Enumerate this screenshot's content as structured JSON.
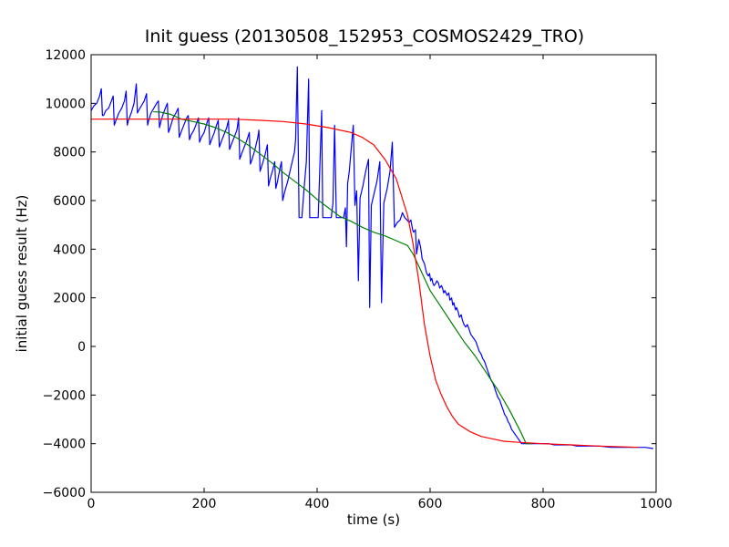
{
  "chart_data": {
    "type": "line",
    "title": "Init guess (20130508_152953_COSMOS2429_TRO)",
    "xlabel": "time (s)",
    "ylabel": "initial guess result (Hz)",
    "xlim": [
      0,
      1000
    ],
    "ylim": [
      -6000,
      12000
    ],
    "xticks": [
      0,
      200,
      400,
      600,
      800,
      1000
    ],
    "yticks": [
      -6000,
      -4000,
      -2000,
      0,
      2000,
      4000,
      6000,
      8000,
      10000,
      12000
    ],
    "grid": false,
    "legend": "none",
    "series": [
      {
        "color": "#0000ff",
        "points": [
          [
            0,
            9700
          ],
          [
            5,
            9900
          ],
          [
            10,
            10000
          ],
          [
            15,
            10300
          ],
          [
            18,
            10600
          ],
          [
            20,
            9500
          ],
          [
            22,
            9500
          ],
          [
            26,
            9700
          ],
          [
            31,
            9800
          ],
          [
            36,
            10100
          ],
          [
            39,
            10300
          ],
          [
            41,
            9100
          ],
          [
            44,
            9300
          ],
          [
            49,
            9600
          ],
          [
            54,
            9800
          ],
          [
            59,
            10100
          ],
          [
            62,
            10500
          ],
          [
            64,
            9100
          ],
          [
            66,
            9300
          ],
          [
            71,
            9600
          ],
          [
            76,
            10000
          ],
          [
            80,
            10800
          ],
          [
            82,
            9600
          ],
          [
            84,
            9700
          ],
          [
            89,
            9900
          ],
          [
            94,
            10100
          ],
          [
            98,
            10400
          ],
          [
            100,
            9100
          ],
          [
            102,
            9300
          ],
          [
            106,
            9600
          ],
          [
            111,
            9800
          ],
          [
            116,
            10000
          ],
          [
            119,
            10100
          ],
          [
            121,
            9000
          ],
          [
            124,
            9300
          ],
          [
            128,
            9600
          ],
          [
            133,
            9900
          ],
          [
            135,
            10000
          ],
          [
            137,
            8800
          ],
          [
            140,
            9000
          ],
          [
            145,
            9400
          ],
          [
            150,
            9600
          ],
          [
            154,
            9800
          ],
          [
            156,
            8600
          ],
          [
            159,
            8800
          ],
          [
            164,
            9100
          ],
          [
            169,
            9400
          ],
          [
            172,
            9500
          ],
          [
            174,
            8500
          ],
          [
            177,
            8700
          ],
          [
            182,
            8900
          ],
          [
            187,
            9200
          ],
          [
            190,
            9400
          ],
          [
            192,
            8400
          ],
          [
            195,
            8600
          ],
          [
            200,
            8800
          ],
          [
            205,
            9200
          ],
          [
            208,
            9400
          ],
          [
            210,
            8300
          ],
          [
            213,
            8500
          ],
          [
            218,
            8800
          ],
          [
            222,
            9100
          ],
          [
            225,
            9300
          ],
          [
            227,
            8200
          ],
          [
            230,
            8400
          ],
          [
            235,
            8700
          ],
          [
            240,
            9000
          ],
          [
            243,
            9300
          ],
          [
            245,
            8100
          ],
          [
            248,
            8300
          ],
          [
            253,
            8600
          ],
          [
            258,
            8900
          ],
          [
            261,
            9400
          ],
          [
            263,
            7700
          ],
          [
            266,
            7900
          ],
          [
            271,
            8200
          ],
          [
            276,
            8500
          ],
          [
            280,
            8800
          ],
          [
            282,
            7500
          ],
          [
            285,
            7700
          ],
          [
            290,
            8100
          ],
          [
            295,
            8600
          ],
          [
            297,
            8900
          ],
          [
            299,
            7200
          ],
          [
            303,
            7500
          ],
          [
            308,
            7900
          ],
          [
            312,
            8300
          ],
          [
            314,
            6600
          ],
          [
            317,
            6900
          ],
          [
            322,
            7300
          ],
          [
            325,
            7600
          ],
          [
            327,
            6500
          ],
          [
            330,
            6800
          ],
          [
            334,
            7300
          ],
          [
            337,
            7600
          ],
          [
            339,
            6000
          ],
          [
            343,
            6400
          ],
          [
            348,
            6800
          ],
          [
            352,
            7200
          ],
          [
            356,
            7600
          ],
          [
            360,
            8000
          ],
          [
            362,
            8500
          ],
          [
            365,
            11500
          ],
          [
            368,
            5300
          ],
          [
            373,
            5300
          ],
          [
            377,
            6500
          ],
          [
            381,
            7600
          ],
          [
            385,
            11000
          ],
          [
            387,
            5300
          ],
          [
            392,
            5300
          ],
          [
            397,
            5300
          ],
          [
            402,
            5300
          ],
          [
            404,
            6800
          ],
          [
            408,
            9700
          ],
          [
            410,
            5300
          ],
          [
            415,
            5300
          ],
          [
            420,
            5300
          ],
          [
            425,
            5300
          ],
          [
            428,
            5900
          ],
          [
            431,
            9100
          ],
          [
            434,
            5300
          ],
          [
            439,
            5300
          ],
          [
            443,
            5300
          ],
          [
            447,
            5300
          ],
          [
            450,
            5700
          ],
          [
            452,
            4100
          ],
          [
            454,
            6700
          ],
          [
            457,
            7200
          ],
          [
            461,
            8300
          ],
          [
            464,
            9100
          ],
          [
            467,
            5800
          ],
          [
            470,
            6400
          ],
          [
            473,
            2700
          ],
          [
            476,
            6100
          ],
          [
            481,
            6600
          ],
          [
            486,
            7200
          ],
          [
            491,
            7700
          ],
          [
            493,
            1600
          ],
          [
            496,
            5800
          ],
          [
            501,
            6300
          ],
          [
            506,
            6800
          ],
          [
            511,
            7600
          ],
          [
            514,
            1800
          ],
          [
            518,
            5900
          ],
          [
            524,
            6500
          ],
          [
            529,
            7200
          ],
          [
            533,
            8400
          ],
          [
            537,
            4900
          ],
          [
            542,
            5100
          ],
          [
            547,
            5200
          ],
          [
            551,
            5500
          ],
          [
            555,
            5300
          ],
          [
            559,
            5200
          ],
          [
            563,
            5100
          ],
          [
            566,
            5200
          ],
          [
            569,
            4800
          ],
          [
            571,
            4700
          ],
          [
            574,
            4800
          ],
          [
            576,
            3800
          ],
          [
            580,
            4400
          ],
          [
            583,
            4100
          ],
          [
            586,
            3600
          ],
          [
            590,
            3400
          ],
          [
            592,
            3200
          ],
          [
            594,
            3000
          ],
          [
            597,
            2900
          ],
          [
            599,
            3000
          ],
          [
            601,
            2700
          ],
          [
            603,
            2800
          ],
          [
            605,
            2600
          ],
          [
            607,
            2500
          ],
          [
            610,
            2600
          ],
          [
            612,
            2700
          ],
          [
            615,
            2600
          ],
          [
            617,
            2400
          ],
          [
            620,
            2500
          ],
          [
            622,
            2400
          ],
          [
            624,
            2200
          ],
          [
            626,
            2300
          ],
          [
            628,
            2200
          ],
          [
            630,
            2100
          ],
          [
            633,
            2200
          ],
          [
            635,
            1900
          ],
          [
            638,
            2000
          ],
          [
            640,
            1700
          ],
          [
            642,
            1800
          ],
          [
            645,
            1500
          ],
          [
            647,
            1600
          ],
          [
            650,
            1400
          ],
          [
            652,
            1200
          ],
          [
            655,
            1300
          ],
          [
            657,
            1100
          ],
          [
            660,
            900
          ],
          [
            663,
            800
          ],
          [
            666,
            900
          ],
          [
            669,
            700
          ],
          [
            672,
            500
          ],
          [
            675,
            400
          ],
          [
            678,
            300
          ],
          [
            681,
            200
          ],
          [
            684,
            0
          ],
          [
            687,
            -200
          ],
          [
            690,
            -300
          ],
          [
            693,
            -500
          ],
          [
            696,
            -600
          ],
          [
            699,
            -800
          ],
          [
            702,
            -1000
          ],
          [
            705,
            -1200
          ],
          [
            708,
            -1400
          ],
          [
            711,
            -1500
          ],
          [
            714,
            -1700
          ],
          [
            717,
            -1900
          ],
          [
            720,
            -2100
          ],
          [
            723,
            -2200
          ],
          [
            726,
            -2400
          ],
          [
            729,
            -2600
          ],
          [
            732,
            -2800
          ],
          [
            735,
            -2900
          ],
          [
            738,
            -3100
          ],
          [
            741,
            -3200
          ],
          [
            744,
            -3400
          ],
          [
            747,
            -3500
          ],
          [
            750,
            -3600
          ],
          [
            753,
            -3700
          ],
          [
            756,
            -3800
          ],
          [
            759,
            -3900
          ],
          [
            762,
            -4000
          ],
          [
            770,
            -4000
          ],
          [
            780,
            -4000
          ],
          [
            790,
            -4000
          ],
          [
            800,
            -4000
          ],
          [
            810,
            -4000
          ],
          [
            820,
            -4050
          ],
          [
            830,
            -4050
          ],
          [
            840,
            -4050
          ],
          [
            850,
            -4050
          ],
          [
            860,
            -4100
          ],
          [
            870,
            -4100
          ],
          [
            880,
            -4100
          ],
          [
            900,
            -4100
          ],
          [
            920,
            -4150
          ],
          [
            940,
            -4150
          ],
          [
            960,
            -4150
          ],
          [
            980,
            -4150
          ],
          [
            995,
            -4200
          ]
        ]
      },
      {
        "color": "#008000",
        "points": [
          [
            110,
            9650
          ],
          [
            120,
            9650
          ],
          [
            130,
            9600
          ],
          [
            140,
            9550
          ],
          [
            150,
            9450
          ],
          [
            160,
            9350
          ],
          [
            180,
            9250
          ],
          [
            200,
            9150
          ],
          [
            220,
            9000
          ],
          [
            240,
            8800
          ],
          [
            260,
            8550
          ],
          [
            280,
            8250
          ],
          [
            300,
            7900
          ],
          [
            320,
            7550
          ],
          [
            340,
            7150
          ],
          [
            360,
            6800
          ],
          [
            380,
            6450
          ],
          [
            400,
            6050
          ],
          [
            420,
            5700
          ],
          [
            440,
            5350
          ],
          [
            460,
            5150
          ],
          [
            480,
            4900
          ],
          [
            500,
            4700
          ],
          [
            520,
            4550
          ],
          [
            540,
            4350
          ],
          [
            560,
            4150
          ],
          [
            570,
            3800
          ],
          [
            580,
            3300
          ],
          [
            590,
            2800
          ],
          [
            600,
            2300
          ],
          [
            620,
            1600
          ],
          [
            640,
            900
          ],
          [
            660,
            200
          ],
          [
            680,
            -400
          ],
          [
            700,
            -1100
          ],
          [
            720,
            -1800
          ],
          [
            740,
            -2600
          ],
          [
            760,
            -3500
          ],
          [
            770,
            -4000
          ],
          [
            780,
            -4000
          ]
        ]
      },
      {
        "color": "#ff0000",
        "points": [
          [
            0,
            9350
          ],
          [
            50,
            9350
          ],
          [
            100,
            9350
          ],
          [
            150,
            9350
          ],
          [
            200,
            9350
          ],
          [
            250,
            9350
          ],
          [
            300,
            9300
          ],
          [
            340,
            9250
          ],
          [
            380,
            9150
          ],
          [
            420,
            9000
          ],
          [
            460,
            8800
          ],
          [
            480,
            8600
          ],
          [
            500,
            8300
          ],
          [
            520,
            7700
          ],
          [
            540,
            6900
          ],
          [
            560,
            5400
          ],
          [
            570,
            4200
          ],
          [
            580,
            2700
          ],
          [
            590,
            900
          ],
          [
            600,
            -400
          ],
          [
            610,
            -1400
          ],
          [
            620,
            -2000
          ],
          [
            630,
            -2500
          ],
          [
            640,
            -2900
          ],
          [
            650,
            -3200
          ],
          [
            670,
            -3500
          ],
          [
            690,
            -3700
          ],
          [
            710,
            -3800
          ],
          [
            730,
            -3900
          ],
          [
            760,
            -3950
          ],
          [
            800,
            -4000
          ],
          [
            850,
            -4050
          ],
          [
            900,
            -4100
          ],
          [
            970,
            -4150
          ]
        ]
      }
    ]
  }
}
